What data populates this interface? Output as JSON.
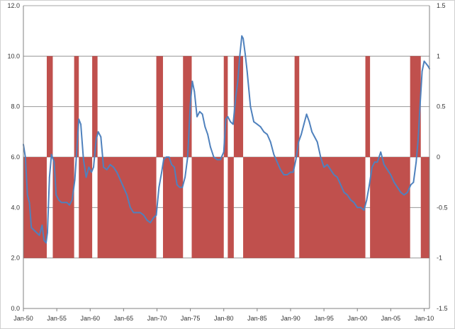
{
  "chart_data": {
    "type": "line",
    "title": "",
    "xlabel": "",
    "ylabel": "",
    "y_left_ticks": [
      "0.0",
      "2.0",
      "4.0",
      "6.0",
      "8.0",
      "10.0",
      "12.0"
    ],
    "y_right_ticks": [
      "-1.5",
      "-1",
      "-0.5",
      "0",
      "0.5",
      "1",
      "1.5"
    ],
    "x_ticks": [
      "Jan-50",
      "Jan-55",
      "Jan-60",
      "Jan-65",
      "Jan-70",
      "Jan-75",
      "Jan-80",
      "Jan-85",
      "Jan-90",
      "Jan-95",
      "Jan-00",
      "Jan-05",
      "Jan-10"
    ],
    "x_range": [
      1950,
      2010.8
    ],
    "ylim_left": [
      0,
      12
    ],
    "ylim_right": [
      -1.5,
      1.5
    ],
    "grid": "horizontal",
    "colors": {
      "line": "#4f81bd",
      "bars": "#c0504d",
      "grid": "#888888"
    },
    "series": [
      {
        "kind": "bars",
        "axis": "right",
        "note": "binary recession indicator",
        "intervals": [
          {
            "start": 1950.0,
            "end": 1953.5,
            "value": -1
          },
          {
            "start": 1953.5,
            "end": 1954.4,
            "value": 1
          },
          {
            "start": 1954.4,
            "end": 1957.6,
            "value": -1
          },
          {
            "start": 1957.6,
            "end": 1958.3,
            "value": 1
          },
          {
            "start": 1958.3,
            "end": 1960.3,
            "value": -1
          },
          {
            "start": 1960.3,
            "end": 1961.1,
            "value": 1
          },
          {
            "start": 1961.1,
            "end": 1969.9,
            "value": -1
          },
          {
            "start": 1969.9,
            "end": 1970.9,
            "value": 1
          },
          {
            "start": 1970.9,
            "end": 1973.9,
            "value": -1
          },
          {
            "start": 1973.9,
            "end": 1975.2,
            "value": 1
          },
          {
            "start": 1975.2,
            "end": 1980.0,
            "value": -1
          },
          {
            "start": 1980.0,
            "end": 1980.6,
            "value": 1
          },
          {
            "start": 1980.6,
            "end": 1981.5,
            "value": -1
          },
          {
            "start": 1981.5,
            "end": 1982.9,
            "value": 1
          },
          {
            "start": 1982.9,
            "end": 1990.6,
            "value": -1
          },
          {
            "start": 1990.6,
            "end": 1991.3,
            "value": 1
          },
          {
            "start": 1991.3,
            "end": 2001.2,
            "value": -1
          },
          {
            "start": 2001.2,
            "end": 2001.9,
            "value": 1
          },
          {
            "start": 2001.9,
            "end": 2007.9,
            "value": -1
          },
          {
            "start": 2007.9,
            "end": 2009.5,
            "value": 1
          },
          {
            "start": 2009.5,
            "end": 2010.8,
            "value": -1
          }
        ]
      },
      {
        "kind": "line",
        "axis": "left",
        "note": "unemployment rate",
        "x": [
          1950.0,
          1950.3,
          1950.6,
          1950.9,
          1951.2,
          1951.6,
          1952.0,
          1952.4,
          1952.8,
          1953.1,
          1953.4,
          1953.6,
          1953.9,
          1954.2,
          1954.6,
          1954.9,
          1955.3,
          1955.7,
          1956.1,
          1956.5,
          1956.9,
          1957.3,
          1957.7,
          1958.0,
          1958.3,
          1958.6,
          1959.0,
          1959.4,
          1959.8,
          1960.2,
          1960.5,
          1960.9,
          1961.2,
          1961.6,
          1962.0,
          1962.5,
          1963.0,
          1963.5,
          1964.0,
          1964.5,
          1965.0,
          1965.5,
          1966.0,
          1966.5,
          1967.0,
          1967.5,
          1968.0,
          1968.5,
          1969.0,
          1969.5,
          1969.9,
          1970.3,
          1970.7,
          1971.0,
          1971.4,
          1971.8,
          1972.2,
          1972.6,
          1973.0,
          1973.4,
          1973.8,
          1974.2,
          1974.6,
          1975.0,
          1975.3,
          1975.6,
          1976.0,
          1976.4,
          1976.8,
          1977.2,
          1977.6,
          1978.0,
          1978.5,
          1979.0,
          1979.5,
          1980.0,
          1980.3,
          1980.6,
          1981.0,
          1981.4,
          1981.8,
          1982.1,
          1982.4,
          1982.7,
          1982.9,
          1983.2,
          1983.5,
          1984.0,
          1984.5,
          1985.0,
          1985.5,
          1986.0,
          1986.5,
          1987.0,
          1987.5,
          1988.0,
          1988.5,
          1989.0,
          1989.5,
          1990.0,
          1990.4,
          1990.8,
          1991.2,
          1991.6,
          1992.0,
          1992.4,
          1992.8,
          1993.2,
          1993.6,
          1994.0,
          1994.5,
          1995.0,
          1995.5,
          1996.0,
          1996.5,
          1997.0,
          1997.5,
          1998.0,
          1998.5,
          1999.0,
          1999.5,
          2000.0,
          2000.5,
          2001.0,
          2001.4,
          2001.8,
          2002.2,
          2002.6,
          2003.0,
          2003.5,
          2004.0,
          2004.5,
          2005.0,
          2005.5,
          2006.0,
          2006.5,
          2007.0,
          2007.5,
          2008.0,
          2008.4,
          2008.8,
          2009.1,
          2009.4,
          2009.7,
          2010.0,
          2010.3,
          2010.6,
          2010.8
        ],
        "y": [
          6.5,
          6.0,
          4.5,
          4.2,
          3.2,
          3.1,
          3.0,
          2.9,
          3.3,
          2.7,
          2.6,
          3.0,
          5.2,
          6.1,
          5.8,
          4.5,
          4.3,
          4.2,
          4.2,
          4.2,
          4.1,
          4.3,
          5.1,
          6.3,
          7.5,
          7.3,
          5.9,
          5.2,
          5.6,
          5.4,
          5.6,
          6.7,
          7.0,
          6.8,
          5.6,
          5.5,
          5.7,
          5.6,
          5.4,
          5.1,
          4.8,
          4.5,
          4.0,
          3.8,
          3.8,
          3.8,
          3.7,
          3.5,
          3.4,
          3.6,
          3.7,
          4.8,
          5.4,
          5.9,
          6.0,
          6.0,
          5.7,
          5.6,
          4.9,
          4.8,
          4.8,
          5.2,
          6.0,
          8.1,
          9.0,
          8.6,
          7.6,
          7.8,
          7.7,
          7.2,
          6.9,
          6.4,
          6.0,
          5.9,
          5.9,
          6.2,
          7.5,
          7.6,
          7.4,
          7.3,
          8.4,
          9.0,
          10.0,
          10.8,
          10.7,
          10.1,
          9.4,
          8.0,
          7.4,
          7.3,
          7.2,
          7.0,
          6.9,
          6.6,
          6.1,
          5.8,
          5.5,
          5.3,
          5.3,
          5.4,
          5.4,
          5.9,
          6.6,
          6.9,
          7.3,
          7.7,
          7.4,
          7.0,
          6.8,
          6.6,
          6.0,
          5.6,
          5.7,
          5.5,
          5.3,
          5.2,
          4.9,
          4.6,
          4.5,
          4.3,
          4.2,
          4.0,
          4.0,
          3.9,
          4.3,
          4.9,
          5.6,
          5.8,
          5.8,
          6.2,
          5.7,
          5.5,
          5.3,
          5.0,
          4.8,
          4.6,
          4.5,
          4.6,
          4.9,
          5.0,
          5.8,
          6.7,
          8.1,
          9.4,
          9.8,
          9.7,
          9.6,
          9.5
        ]
      }
    ]
  }
}
